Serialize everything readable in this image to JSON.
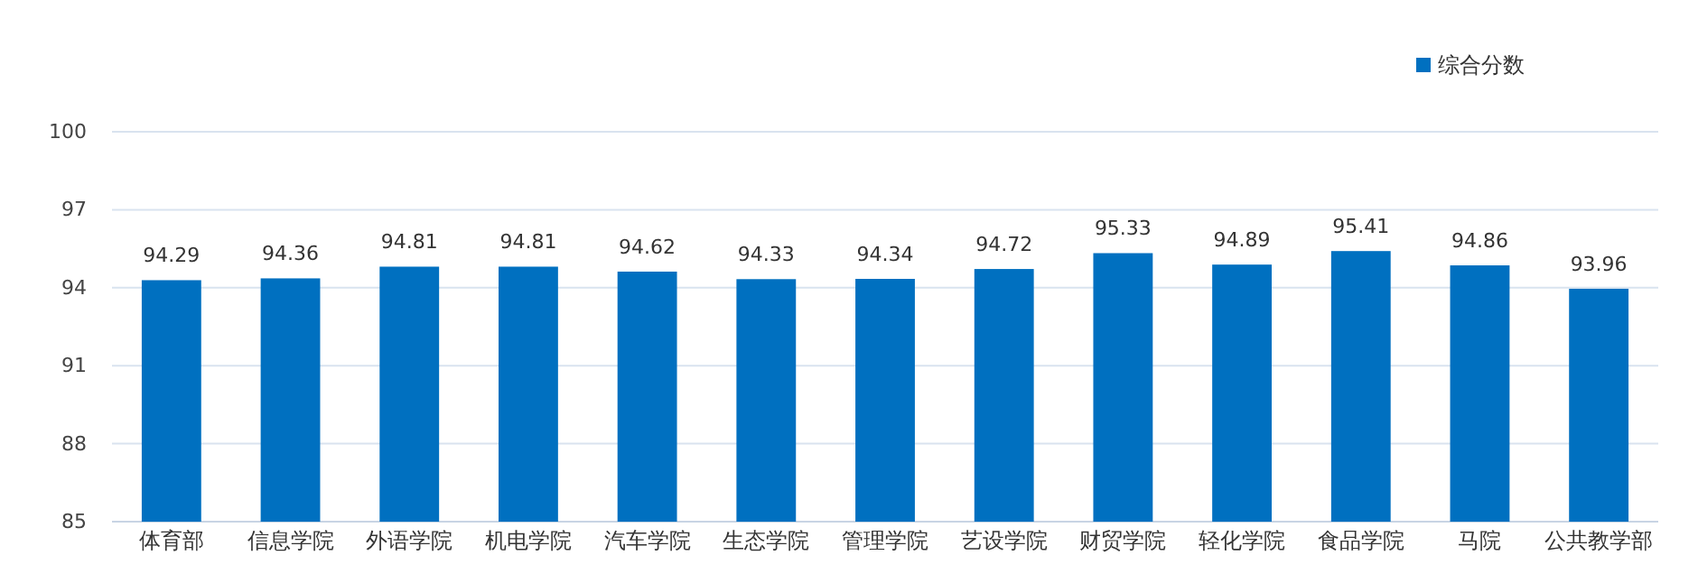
{
  "chart_data": {
    "type": "bar",
    "categories": [
      "体育部",
      "信息学院",
      "外语学院",
      "机电学院",
      "汽车学院",
      "生态学院",
      "管理学院",
      "艺设学院",
      "财贸学院",
      "轻化学院",
      "食品学院",
      "马院",
      "公共教学部"
    ],
    "series": [
      {
        "name": "综合分数",
        "color": "#0070c0",
        "values": [
          94.29,
          94.36,
          94.81,
          94.81,
          94.62,
          94.33,
          94.34,
          94.72,
          95.33,
          94.89,
          95.41,
          94.86,
          93.96
        ]
      }
    ],
    "ylim": [
      85,
      100
    ],
    "yticks": [
      85,
      88,
      91,
      94,
      97,
      100
    ],
    "grid": "y",
    "legend": "top right",
    "data_labels": true
  }
}
